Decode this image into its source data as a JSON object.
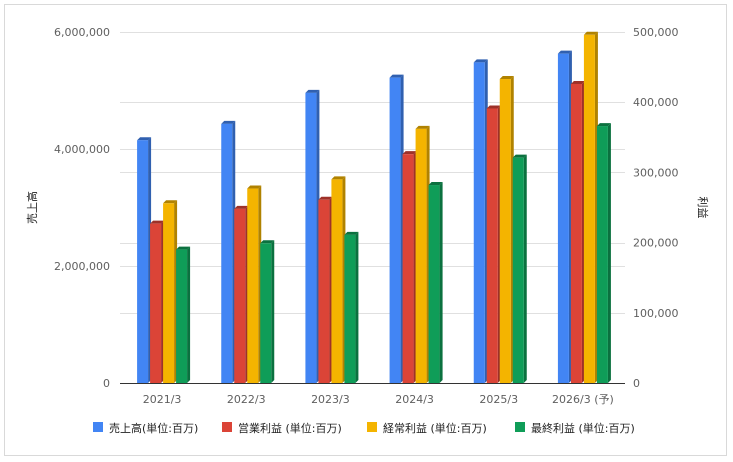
{
  "chart_data": {
    "type": "bar",
    "categories": [
      "2021/3",
      "2022/3",
      "2023/3",
      "2024/3",
      "2025/3",
      "2026/3 (予)"
    ],
    "left_axis": {
      "label": "売上高",
      "ylim": [
        0,
        6000000
      ],
      "ticks": [
        0,
        2000000,
        4000000,
        6000000
      ],
      "tick_labels": [
        "0",
        "2,000,000",
        "4,000,000",
        "6,000,000"
      ]
    },
    "right_axis": {
      "label": "利益",
      "ylim": [
        0,
        500000
      ],
      "ticks": [
        0,
        100000,
        200000,
        300000,
        400000,
        500000
      ],
      "tick_labels": [
        "0",
        "100,000",
        "200,000",
        "300,000",
        "400,000",
        "500,000"
      ]
    },
    "series": [
      {
        "name": "売上高(単位:百万)",
        "axis": "left",
        "color": "#4285f4",
        "values": [
          4150000,
          4430000,
          4960000,
          5220000,
          5480000,
          5630000
        ]
      },
      {
        "name": "営業利益 (単位:百万)",
        "axis": "right",
        "color": "#db4437",
        "values": [
          227000,
          248000,
          261000,
          326000,
          391000,
          426000
        ]
      },
      {
        "name": "経常利益 (単位:百万)",
        "axis": "right",
        "color": "#f4b400",
        "values": [
          256000,
          277000,
          290000,
          362000,
          433000,
          496000
        ]
      },
      {
        "name": "最終利益 (単位:百万)",
        "axis": "right",
        "color": "#0f9d58",
        "values": [
          190000,
          199000,
          211000,
          282000,
          321000,
          366000
        ]
      }
    ],
    "gridlines": true,
    "legend_position": "bottom"
  }
}
